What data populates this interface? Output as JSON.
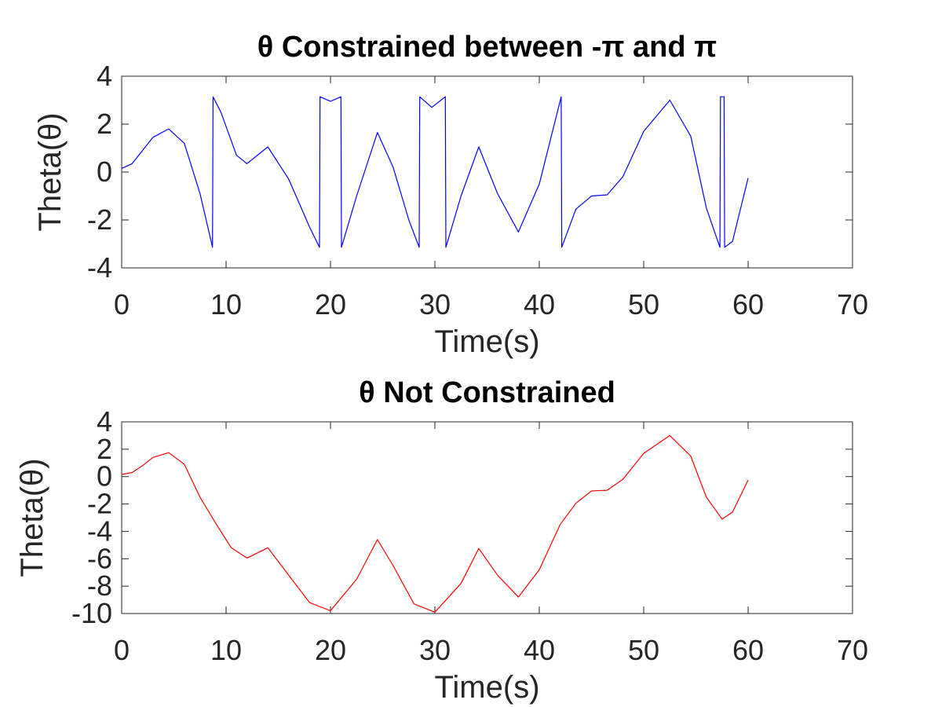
{
  "chart_data": [
    {
      "type": "line",
      "title": "θ Constrained between -π and π",
      "xlabel": "Time(s)",
      "ylabel": "Theta(θ)",
      "xlim": [
        0,
        70
      ],
      "ylim": [
        -4,
        4
      ],
      "xticks": [
        "0",
        "10",
        "20",
        "30",
        "40",
        "50",
        "60",
        "70"
      ],
      "yticks": [
        "4",
        "2",
        "0",
        "-2",
        "-4"
      ],
      "grid": false,
      "series": [
        {
          "color": "#0000ff",
          "x": [
            0,
            1,
            2,
            3,
            4.5,
            6,
            7.5,
            8.7,
            8.75,
            9.5,
            11,
            12,
            14,
            16,
            18,
            18.95,
            19.0,
            20.0,
            21.0,
            21.05,
            22.5,
            24.5,
            26,
            27.5,
            28.5,
            28.55,
            29.7,
            31.0,
            31.05,
            32.5,
            34.2,
            36,
            38,
            40,
            42.1,
            42.15,
            43.5,
            45,
            46.5,
            48,
            50,
            52.5,
            54.5,
            56,
            57.3,
            57.35,
            57.7,
            57.75,
            58.5,
            60
          ],
          "y": [
            0.15,
            0.35,
            0.9,
            1.45,
            1.8,
            1.2,
            -0.9,
            -3.14,
            3.14,
            2.5,
            0.7,
            0.35,
            1.05,
            -0.3,
            -2.3,
            -3.14,
            3.14,
            2.95,
            3.14,
            -3.14,
            -1.0,
            1.65,
            0.2,
            -2.0,
            -3.14,
            3.14,
            2.7,
            3.14,
            -3.14,
            -1.0,
            1.05,
            -0.9,
            -2.5,
            -0.5,
            3.14,
            -3.14,
            -1.55,
            -1.0,
            -0.95,
            -0.2,
            1.7,
            3.0,
            1.5,
            -1.5,
            -3.14,
            3.14,
            3.14,
            -3.14,
            -2.9,
            -0.25
          ]
        }
      ]
    },
    {
      "type": "line",
      "title": "θ Not Constrained",
      "xlabel": "Time(s)",
      "ylabel": "Theta(θ)",
      "xlim": [
        0,
        70
      ],
      "ylim": [
        -10,
        4
      ],
      "xticks": [
        "0",
        "10",
        "20",
        "30",
        "40",
        "50",
        "60",
        "70"
      ],
      "yticks": [
        "4",
        "2",
        "0",
        "-2",
        "-4",
        "-6",
        "-8",
        "-10"
      ],
      "grid": false,
      "series": [
        {
          "color": "#ff0000",
          "x": [
            0,
            1,
            2,
            3,
            4.5,
            6,
            7.5,
            9,
            10.5,
            12,
            14,
            16,
            18,
            20,
            22.5,
            24.5,
            26,
            28,
            30,
            32.5,
            34.2,
            36,
            38,
            40,
            42,
            43.5,
            45,
            46.5,
            48,
            50,
            52.5,
            54.5,
            56,
            57.5,
            58.5,
            60
          ],
          "y": [
            0.15,
            0.3,
            0.8,
            1.4,
            1.75,
            0.9,
            -1.5,
            -3.4,
            -5.2,
            -5.95,
            -5.2,
            -7.2,
            -9.2,
            -9.8,
            -7.5,
            -4.6,
            -6.5,
            -9.3,
            -9.9,
            -7.8,
            -5.25,
            -7.2,
            -8.8,
            -6.8,
            -3.5,
            -1.95,
            -1.05,
            -1.0,
            -0.2,
            1.7,
            3.0,
            1.5,
            -1.5,
            -3.1,
            -2.6,
            -0.25
          ]
        }
      ]
    }
  ]
}
